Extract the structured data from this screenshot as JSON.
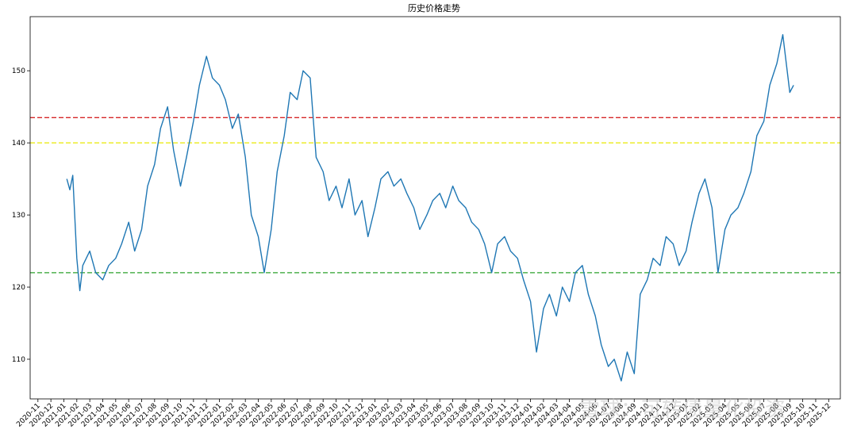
{
  "chart_data": {
    "type": "line",
    "title": "历史价格走势",
    "xlabel": "",
    "ylabel": "",
    "ylim": [
      104.5,
      157.5
    ],
    "xlim": [
      "2020-11",
      "2025-12"
    ],
    "y_ticks": [
      110,
      120,
      130,
      140,
      150
    ],
    "x_ticks": [
      "2020-11",
      "2020-12",
      "2021-01",
      "2021-02",
      "2021-03",
      "2021-04",
      "2021-05",
      "2021-06",
      "2021-07",
      "2021-08",
      "2021-09",
      "2021-10",
      "2021-11",
      "2021-12",
      "2022-01",
      "2022-02",
      "2022-03",
      "2022-04",
      "2022-05",
      "2022-06",
      "2022-07",
      "2022-08",
      "2022-09",
      "2022-10",
      "2022-11",
      "2022-12",
      "2023-01",
      "2023-02",
      "2023-03",
      "2023-04",
      "2023-05",
      "2023-06",
      "2023-07",
      "2023-08",
      "2023-09",
      "2023-10",
      "2023-11",
      "2023-12",
      "2024-01",
      "2024-02",
      "2024-03",
      "2024-04",
      "2024-05",
      "2024-06",
      "2024-07",
      "2024-08",
      "2024-09",
      "2024-10",
      "2024-11",
      "2024-12",
      "2025-01",
      "2025-02",
      "2025-03",
      "2025-04",
      "2025-05",
      "2025-06",
      "2025-07",
      "2025-08",
      "2025-09",
      "2025-10",
      "2025-11",
      "2025-12"
    ],
    "grid": false,
    "series": [
      {
        "color": "#1f77b4",
        "x": [
          "2021-01-08",
          "2021-01-15",
          "2021-01-22",
          "2021-02-01",
          "2021-02-08",
          "2021-02-15",
          "2021-03-01",
          "2021-03-15",
          "2021-04-01",
          "2021-04-15",
          "2021-05-01",
          "2021-05-15",
          "2021-06-01",
          "2021-06-15",
          "2021-07-01",
          "2021-07-15",
          "2021-08-01",
          "2021-08-15",
          "2021-09-01",
          "2021-09-15",
          "2021-10-01",
          "2021-10-15",
          "2021-11-01",
          "2021-11-15",
          "2021-12-01",
          "2021-12-15",
          "2022-01-01",
          "2022-01-15",
          "2022-02-01",
          "2022-02-15",
          "2022-03-01",
          "2022-03-15",
          "2022-04-01",
          "2022-04-15",
          "2022-05-01",
          "2022-05-15",
          "2022-06-01",
          "2022-06-15",
          "2022-07-01",
          "2022-07-15",
          "2022-08-01",
          "2022-08-15",
          "2022-09-01",
          "2022-09-15",
          "2022-10-01",
          "2022-10-15",
          "2022-11-01",
          "2022-11-15",
          "2022-12-01",
          "2022-12-15",
          "2023-01-01",
          "2023-01-15",
          "2023-02-01",
          "2023-02-15",
          "2023-03-01",
          "2023-03-15",
          "2023-04-01",
          "2023-04-15",
          "2023-05-01",
          "2023-05-15",
          "2023-06-01",
          "2023-06-15",
          "2023-07-01",
          "2023-07-15",
          "2023-08-01",
          "2023-08-15",
          "2023-09-01",
          "2023-09-15",
          "2023-10-01",
          "2023-10-15",
          "2023-11-01",
          "2023-11-15",
          "2023-12-01",
          "2023-12-15",
          "2024-01-01",
          "2024-01-15",
          "2024-02-01",
          "2024-02-15",
          "2024-03-01",
          "2024-03-15",
          "2024-04-01",
          "2024-04-15",
          "2024-05-01",
          "2024-05-15",
          "2024-06-01",
          "2024-06-15",
          "2024-07-01",
          "2024-07-15",
          "2024-08-01",
          "2024-08-15",
          "2024-09-01",
          "2024-09-15",
          "2024-10-01",
          "2024-10-15",
          "2024-11-01",
          "2024-11-15",
          "2024-12-01",
          "2024-12-15",
          "2025-01-01",
          "2025-01-15",
          "2025-02-01",
          "2025-02-15",
          "2025-03-01",
          "2025-03-15",
          "2025-04-01",
          "2025-04-15",
          "2025-05-01",
          "2025-05-15",
          "2025-06-01",
          "2025-06-15",
          "2025-07-01",
          "2025-07-15",
          "2025-08-01",
          "2025-08-15",
          "2025-09-01",
          "2025-09-10"
        ],
        "y": [
          135,
          133.5,
          135.5,
          124,
          119.5,
          123,
          125,
          122,
          121,
          123,
          124,
          126,
          129,
          125,
          128,
          134,
          137,
          142,
          145,
          139,
          134,
          138,
          143,
          148,
          152,
          149,
          148,
          146,
          142,
          144,
          138,
          130,
          127,
          122,
          128,
          136,
          141,
          147,
          146,
          150,
          149,
          138,
          136,
          132,
          134,
          131,
          135,
          130,
          132,
          127,
          131,
          135,
          136,
          134,
          135,
          133,
          131,
          128,
          130,
          132,
          133,
          131,
          134,
          132,
          131,
          129,
          128,
          126,
          122,
          126,
          127,
          125,
          124,
          121,
          118,
          111,
          117,
          119,
          116,
          120,
          118,
          122,
          123,
          119,
          116,
          112,
          109,
          110,
          107,
          111,
          108,
          119,
          121,
          124,
          123,
          127,
          126,
          123,
          125,
          129,
          133,
          135,
          131,
          122,
          128,
          130,
          131,
          133,
          136,
          141,
          143,
          148,
          151,
          155,
          147,
          148
        ]
      }
    ],
    "reference_lines": [
      {
        "y": 143.5,
        "color": "#d62728",
        "style": "dashed"
      },
      {
        "y": 140.0,
        "color": "#e8e800",
        "style": "dashed"
      },
      {
        "y": 122.0,
        "color": "#2ca02c",
        "style": "dashed"
      }
    ]
  },
  "watermark": {
    "text": "雪球：可转债量化投资"
  }
}
